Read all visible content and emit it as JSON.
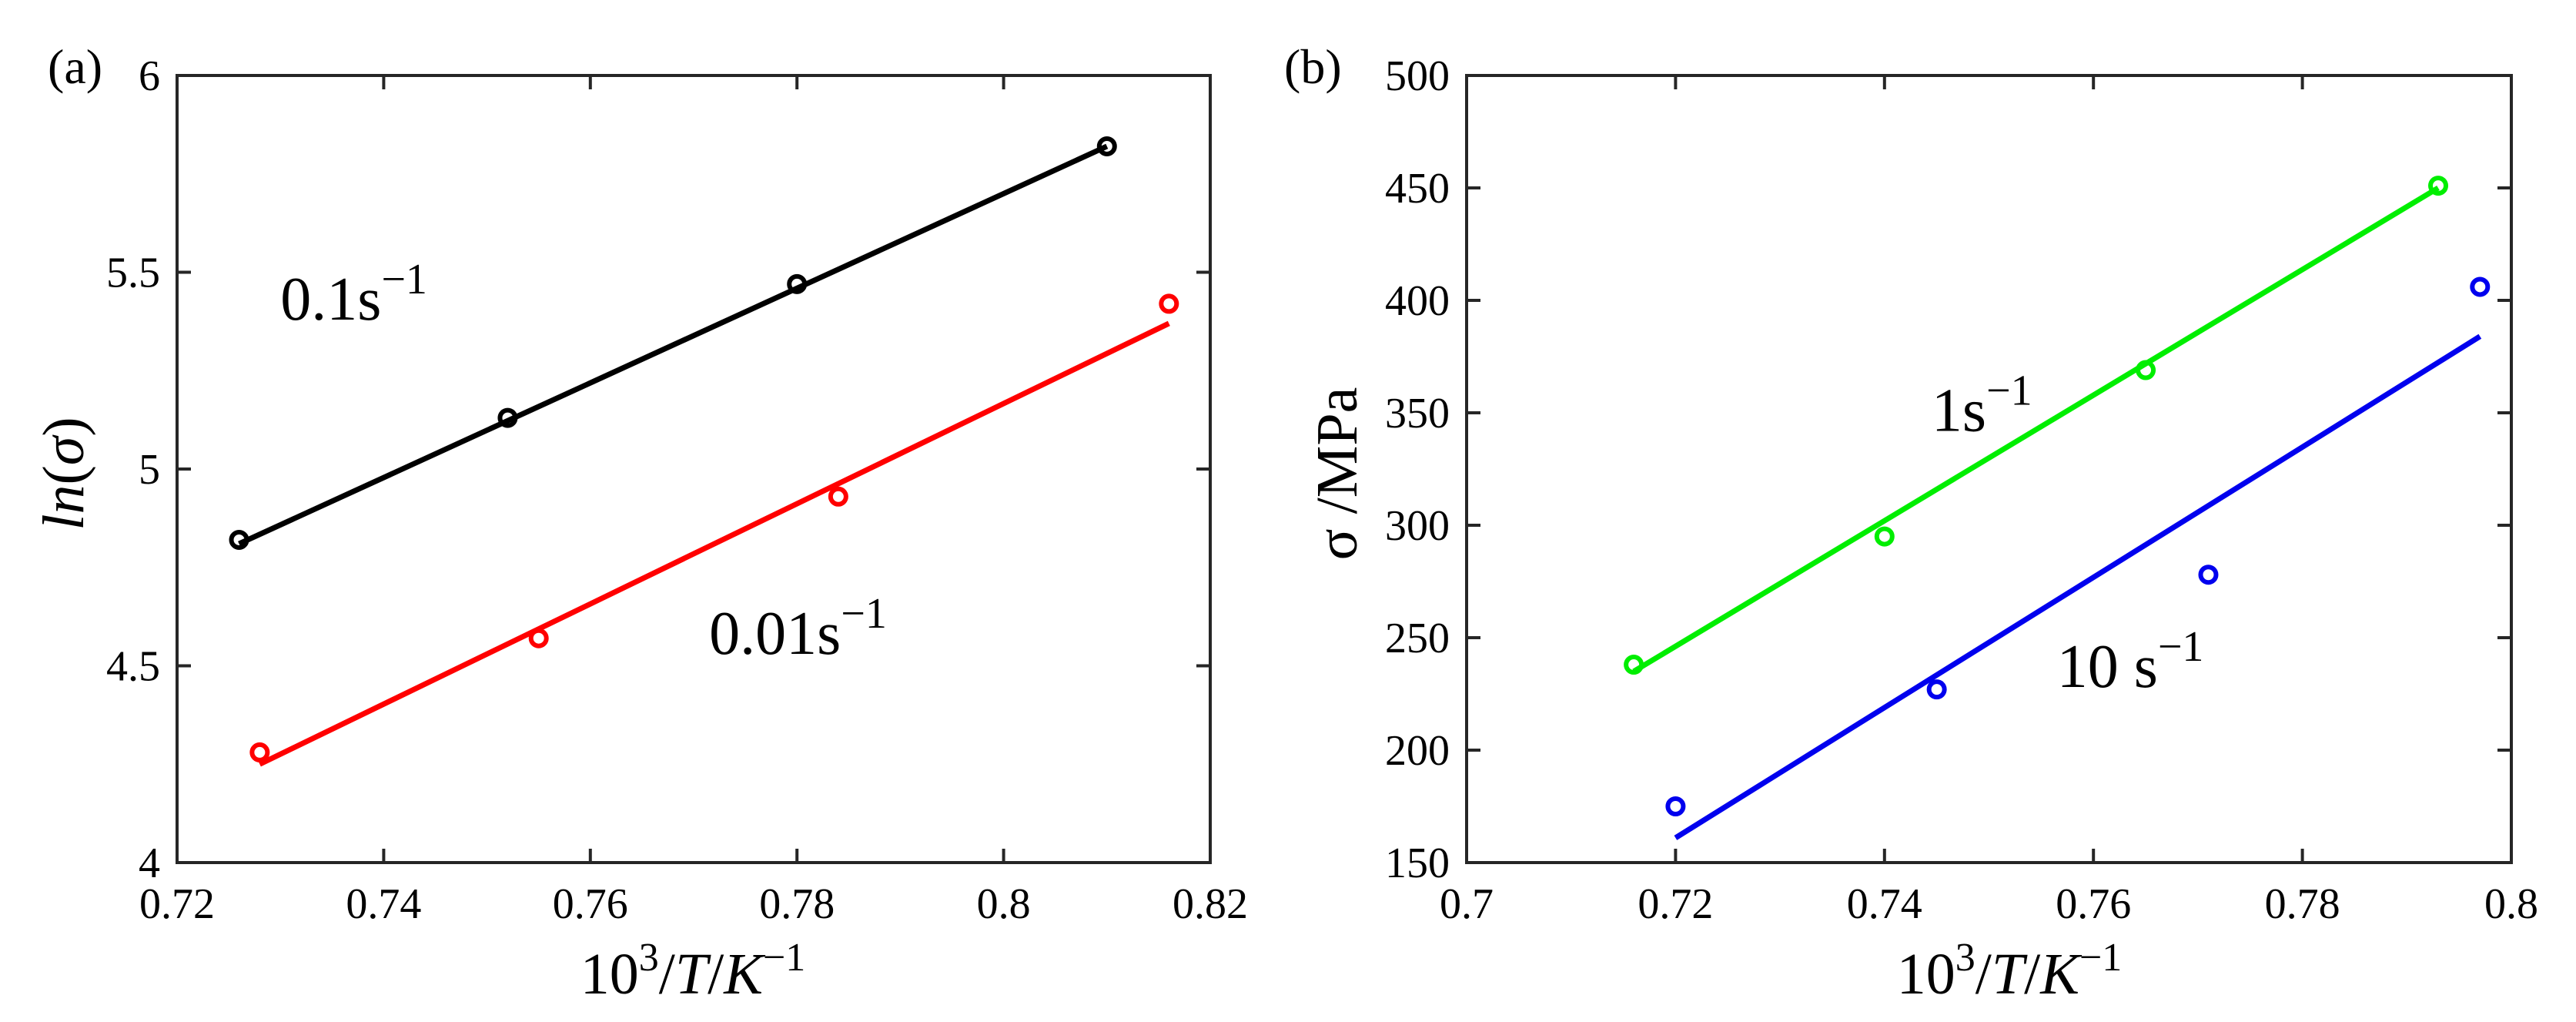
{
  "chart_data": [
    {
      "type": "scatter",
      "panel_label": "(a)",
      "xlabel": "10^3/T/K^-1",
      "ylabel": "ln(σ)",
      "xlim": [
        0.72,
        0.82
      ],
      "ylim": [
        4,
        6
      ],
      "xticks": [
        "0.72",
        "0.74",
        "0.76",
        "0.78",
        "0.8",
        "0.82"
      ],
      "yticks": [
        "4",
        "4.5",
        "5",
        "5.5",
        "6"
      ],
      "series": [
        {
          "name": "0.1s^-1",
          "label_text": "0.1s",
          "label_sup": "−1",
          "color": "#000000",
          "x": [
            0.726,
            0.752,
            0.78,
            0.81
          ],
          "y": [
            4.82,
            5.13,
            5.47,
            5.82
          ],
          "fit": {
            "x": [
              0.726,
              0.81
            ],
            "y": [
              4.81,
              5.82
            ]
          },
          "label_pos": [
            0.73,
            5.38
          ]
        },
        {
          "name": "0.01s^-1",
          "label_text": "0.01s",
          "label_sup": "−1",
          "color": "#ff0000",
          "x": [
            0.728,
            0.755,
            0.784,
            0.816
          ],
          "y": [
            4.28,
            4.57,
            4.93,
            5.42
          ],
          "fit": {
            "x": [
              0.728,
              0.816
            ],
            "y": [
              4.25,
              5.37
            ]
          },
          "label_pos": [
            0.7715,
            4.53
          ]
        }
      ]
    },
    {
      "type": "scatter",
      "panel_label": "(b)",
      "xlabel": "10^3/T/K^-1",
      "ylabel": "σ /MPa",
      "xlim": [
        0.7,
        0.8
      ],
      "ylim": [
        150,
        500
      ],
      "xticks": [
        "0.7",
        "0.72",
        "0.74",
        "0.76",
        "0.78",
        "0.8"
      ],
      "yticks": [
        "150",
        "200",
        "250",
        "300",
        "350",
        "400",
        "450",
        "500"
      ],
      "series": [
        {
          "name": "1s^-1",
          "label_text": "1s",
          "label_sup": "−1",
          "color": "#00ee00",
          "x": [
            0.716,
            0.74,
            0.765,
            0.793
          ],
          "y": [
            238,
            295,
            369,
            451
          ],
          "fit": {
            "x": [
              0.716,
              0.793
            ],
            "y": [
              235,
              450
            ]
          },
          "label_pos": [
            0.7445,
            342
          ]
        },
        {
          "name": "10 s^-1",
          "label_text": "10 s",
          "label_sup": "−1",
          "color": "#0000ee",
          "x": [
            0.72,
            0.745,
            0.771,
            0.797
          ],
          "y": [
            175,
            227,
            278,
            406
          ],
          "fit": {
            "x": [
              0.72,
              0.797
            ],
            "y": [
              161,
              384
            ]
          },
          "label_pos": [
            0.7565,
            228
          ]
        }
      ]
    }
  ]
}
